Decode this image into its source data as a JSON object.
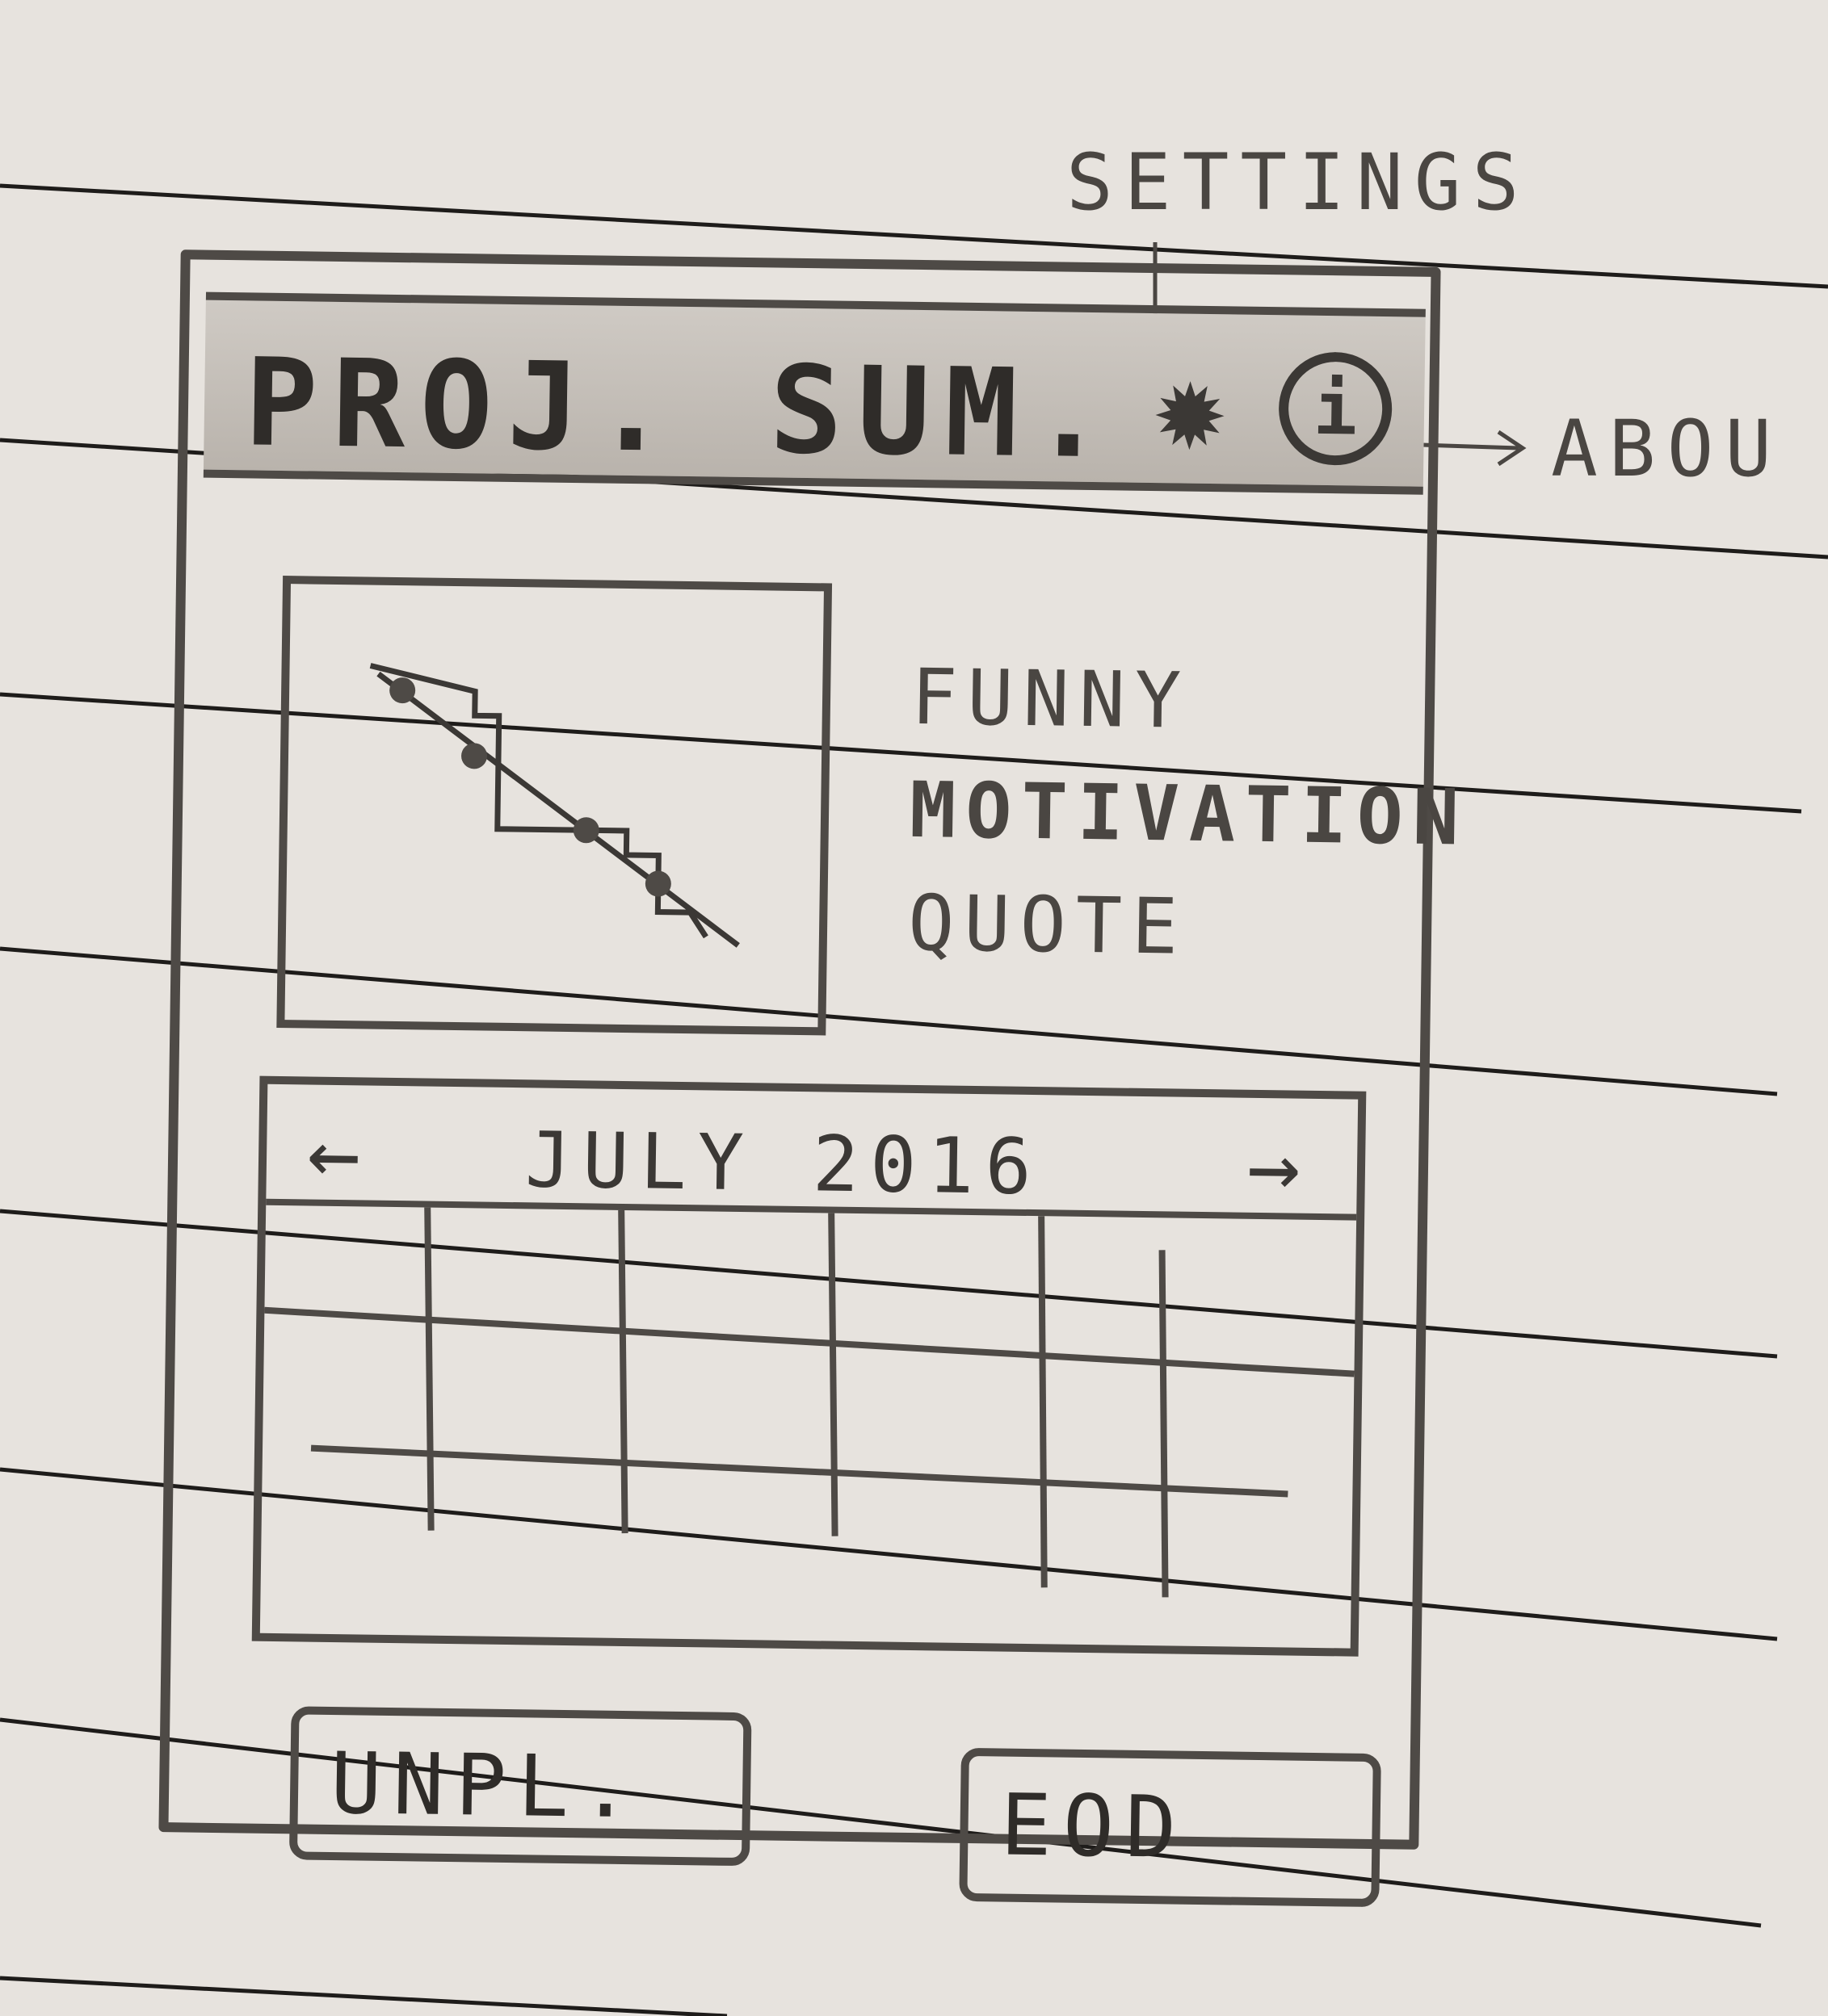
{
  "annotations": {
    "settings": "SETTINGS",
    "about": "ABOU"
  },
  "header": {
    "title": "PROJ. SUM.",
    "settings_icon": "gear-icon",
    "about_icon": "info-icon",
    "about_glyph": "i"
  },
  "quote": {
    "line1": "FUNNY",
    "line2": "MOTIVATION",
    "line3": "QUOTE"
  },
  "calendar": {
    "prev": "←",
    "month": "JULY 2016",
    "next": "→"
  },
  "buttons": {
    "unplanned": "UNPL.",
    "eod": "EOD"
  },
  "colors": {
    "paper": "#e7e3de",
    "pencil": "#4e4a46"
  }
}
